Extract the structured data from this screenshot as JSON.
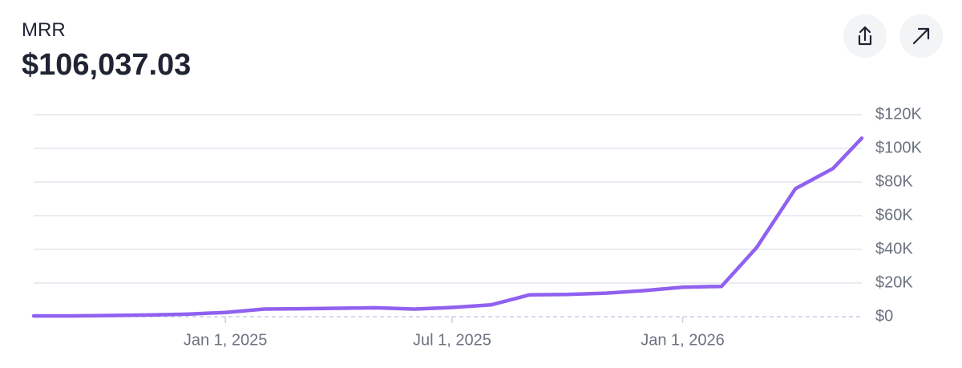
{
  "header": {
    "title": "MRR",
    "value": "$106,037.03"
  },
  "chart_data": {
    "type": "line",
    "x": [
      "2024-08-01",
      "2024-09-01",
      "2024-10-01",
      "2024-11-01",
      "2024-12-01",
      "2025-01-01",
      "2025-02-01",
      "2025-03-01",
      "2025-04-01",
      "2025-05-01",
      "2025-06-01",
      "2025-07-01",
      "2025-08-01",
      "2025-09-01",
      "2025-10-01",
      "2025-11-01",
      "2025-12-01",
      "2026-01-01",
      "2026-02-01",
      "2026-03-01",
      "2026-04-01",
      "2026-05-01",
      "2026-05-24"
    ],
    "series": [
      {
        "name": "MRR",
        "color": "#9061f0",
        "values": [
          500,
          500,
          700,
          1000,
          1500,
          2500,
          4500,
          4700,
          5000,
          5300,
          4500,
          5500,
          7000,
          13000,
          13200,
          14000,
          15500,
          17500,
          18000,
          41000,
          76000,
          88000,
          106037.03
        ]
      }
    ],
    "xlim": [
      "2024-08-01",
      "2026-05-24"
    ],
    "xticks": [
      {
        "value": "2025-01-01",
        "label": "Jan 1, 2025"
      },
      {
        "value": "2025-07-01",
        "label": "Jul 1, 2025"
      },
      {
        "value": "2026-01-01",
        "label": "Jan 1, 2026"
      }
    ],
    "ylim": [
      0,
      120000
    ],
    "yticks": [
      {
        "value": 0,
        "label": "$0"
      },
      {
        "value": 20000,
        "label": "$20K"
      },
      {
        "value": 40000,
        "label": "$40K"
      },
      {
        "value": 60000,
        "label": "$60K"
      },
      {
        "value": 80000,
        "label": "$80K"
      },
      {
        "value": 100000,
        "label": "$100K"
      },
      {
        "value": 120000,
        "label": "$120K"
      }
    ],
    "grid": true
  }
}
